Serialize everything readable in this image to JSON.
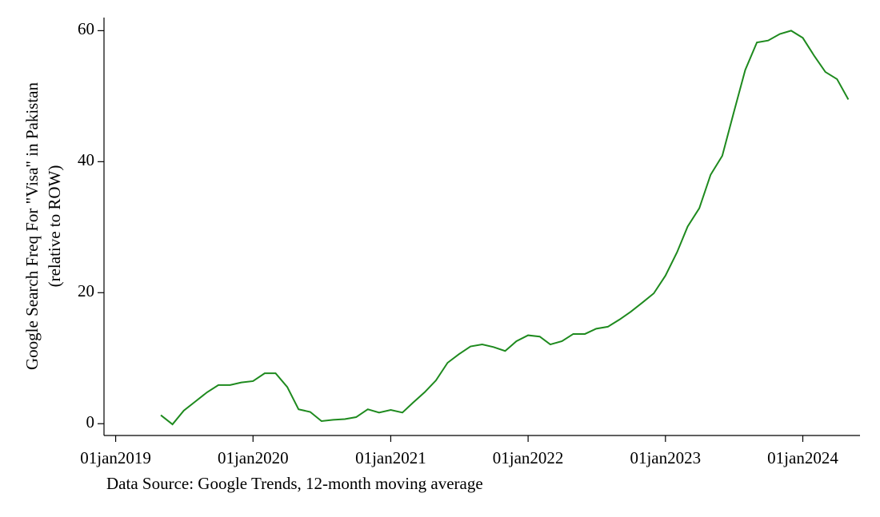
{
  "chart_data": {
    "type": "line",
    "y_label": [
      "Google Search Freq For \"Visa\" in Pakistan",
      "(relative to ROW)"
    ],
    "source": "Data Source: Google Trends, 12-month moving average",
    "x": [
      "2019-05-01",
      "2019-06-01",
      "2019-07-01",
      "2019-08-01",
      "2019-09-01",
      "2019-10-01",
      "2019-11-01",
      "2019-12-01",
      "2020-01-01",
      "2020-02-01",
      "2020-03-01",
      "2020-04-01",
      "2020-05-01",
      "2020-06-01",
      "2020-07-01",
      "2020-08-01",
      "2020-09-01",
      "2020-10-01",
      "2020-11-01",
      "2020-12-01",
      "2021-01-01",
      "2021-02-01",
      "2021-03-01",
      "2021-04-01",
      "2021-05-01",
      "2021-06-01",
      "2021-07-01",
      "2021-08-01",
      "2021-09-01",
      "2021-10-01",
      "2021-11-01",
      "2021-12-01",
      "2022-01-01",
      "2022-02-01",
      "2022-03-01",
      "2022-04-01",
      "2022-05-01",
      "2022-06-01",
      "2022-07-01",
      "2022-08-01",
      "2022-09-01",
      "2022-10-01",
      "2022-11-01",
      "2022-12-01",
      "2023-01-01",
      "2023-02-01",
      "2023-03-01",
      "2023-04-01",
      "2023-05-01",
      "2023-06-01",
      "2023-07-01",
      "2023-08-01",
      "2023-09-01",
      "2023-10-01",
      "2023-11-01",
      "2023-12-01",
      "2024-01-01",
      "2024-02-01",
      "2024-03-01",
      "2024-04-01",
      "2024-05-01"
    ],
    "series": [
      {
        "color": "#1e8a1e",
        "values": [
          1.3,
          -0.1,
          2.0,
          3.4,
          4.8,
          5.9,
          5.9,
          6.3,
          6.5,
          7.7,
          7.7,
          5.6,
          2.2,
          1.8,
          0.4,
          0.6,
          0.7,
          1.0,
          2.2,
          1.7,
          2.1,
          1.7,
          3.2,
          4.8,
          6.6,
          9.3,
          10.6,
          11.8,
          12.1,
          11.7,
          11.1,
          12.6,
          13.5,
          13.3,
          12.1,
          12.6,
          13.7,
          13.7,
          14.5,
          14.8,
          15.9,
          17.1,
          18.5,
          19.9,
          22.6,
          26.2,
          30.1,
          32.9,
          38.0,
          40.9,
          47.4,
          54.0,
          58.2,
          58.5,
          59.5,
          60.0,
          58.9,
          56.1,
          53.7,
          52.6,
          49.5
        ]
      }
    ],
    "xlim": [
      "2018-12-01",
      "2024-06-01"
    ],
    "xticks": [
      {
        "value": "2019-01-01",
        "label": "01jan2019"
      },
      {
        "value": "2020-01-01",
        "label": "01jan2020"
      },
      {
        "value": "2021-01-01",
        "label": "01jan2021"
      },
      {
        "value": "2022-01-01",
        "label": "01jan2022"
      },
      {
        "value": "2023-01-01",
        "label": "01jan2023"
      },
      {
        "value": "2024-01-01",
        "label": "01jan2024"
      }
    ],
    "ylim": [
      -1.8,
      62
    ],
    "yticks": [
      0,
      20,
      40,
      60
    ],
    "grid": false
  }
}
